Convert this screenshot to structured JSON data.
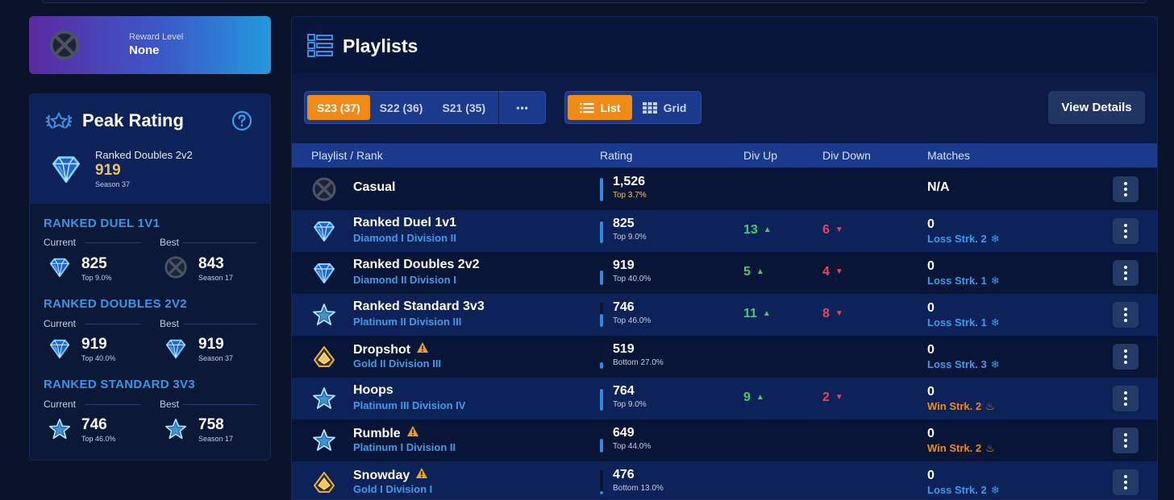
{
  "reward": {
    "label": "Reward Level",
    "value": "None"
  },
  "peak": {
    "title": "Peak Rating",
    "playlist": "Ranked Doubles 2v2",
    "rating": "919",
    "season": "Season 37",
    "sections": [
      {
        "title": "RANKED DUEL 1V1",
        "current_label": "Current",
        "best_label": "Best",
        "current": {
          "value": "825",
          "sub": "Top 9.0%",
          "icon": "diamond-rank-icon"
        },
        "best": {
          "value": "843",
          "sub": "Season 17",
          "icon": "unranked-icon"
        }
      },
      {
        "title": "RANKED DOUBLES 2V2",
        "current_label": "Current",
        "best_label": "Best",
        "current": {
          "value": "919",
          "sub": "Top 40.0%",
          "icon": "diamond-rank-icon"
        },
        "best": {
          "value": "919",
          "sub": "Season 37",
          "icon": "diamond-rank-icon"
        }
      },
      {
        "title": "RANKED STANDARD 3V3",
        "current_label": "Current",
        "best_label": "Best",
        "current": {
          "value": "746",
          "sub": "Top 46.0%",
          "icon": "platinum-rank-icon"
        },
        "best": {
          "value": "758",
          "sub": "Season 17",
          "icon": "platinum-rank-icon"
        }
      }
    ]
  },
  "main": {
    "title": "Playlists",
    "seasons": [
      "S23 (37)",
      "S22 (36)",
      "S21 (35)"
    ],
    "more_label": "•••",
    "view_list": "List",
    "view_grid": "Grid",
    "view_details": "View Details",
    "columns": [
      "Playlist / Rank",
      "Rating",
      "Div Up",
      "Div Down",
      "Matches"
    ]
  },
  "rows": [
    {
      "name": "Casual",
      "rank": "",
      "rating": "1,526",
      "rating_sub": "Top 3.7%",
      "rating_level": 0.963,
      "div_up": "",
      "div_down": "",
      "matches": "N/A",
      "streak": "",
      "icon": "unranked-icon",
      "warn": false
    },
    {
      "name": "Ranked Duel 1v1",
      "rank": "Diamond I Division II",
      "rating": "825",
      "rating_sub": "Top 9.0%",
      "rating_level": 0.91,
      "div_up": "13",
      "div_down": "6",
      "matches": "0",
      "streak": "Loss Strk. 2",
      "streak_type": "loss",
      "icon": "diamond-rank-icon",
      "warn": false
    },
    {
      "name": "Ranked Doubles 2v2",
      "rank": "Diamond II Division I",
      "rating": "919",
      "rating_sub": "Top 40.0%",
      "rating_level": 0.6,
      "div_up": "5",
      "div_down": "4",
      "matches": "0",
      "streak": "Loss Strk. 1",
      "streak_type": "loss",
      "icon": "diamond-rank-icon",
      "warn": false
    },
    {
      "name": "Ranked Standard 3v3",
      "rank": "Platinum II Division III",
      "rating": "746",
      "rating_sub": "Top 46.0%",
      "rating_level": 0.54,
      "div_up": "11",
      "div_down": "8",
      "matches": "0",
      "streak": "Loss Strk. 1",
      "streak_type": "loss",
      "icon": "platinum-rank-icon",
      "warn": false
    },
    {
      "name": "Dropshot",
      "rank": "Gold II Division III",
      "rating": "519",
      "rating_sub": "Bottom 27.0%",
      "rating_level": 0.27,
      "div_up": "",
      "div_down": "",
      "matches": "0",
      "streak": "Loss Strk. 3",
      "streak_type": "loss",
      "icon": "gold-rank-icon",
      "warn": true
    },
    {
      "name": "Hoops",
      "rank": "Platinum III Division IV",
      "rating": "764",
      "rating_sub": "Top 9.0%",
      "rating_level": 0.91,
      "div_up": "9",
      "div_down": "2",
      "matches": "0",
      "streak": "Win Strk. 2",
      "streak_type": "win",
      "icon": "platinum-rank-icon",
      "warn": false
    },
    {
      "name": "Rumble",
      "rank": "Platinum I Division II",
      "rating": "649",
      "rating_sub": "Top 44.0%",
      "rating_level": 0.56,
      "div_up": "",
      "div_down": "",
      "matches": "0",
      "streak": "Win Strk. 2",
      "streak_type": "win",
      "icon": "platinum-rank-icon",
      "warn": true
    },
    {
      "name": "Snowday",
      "rank": "Gold I Division I",
      "rating": "476",
      "rating_sub": "Bottom 13.0%",
      "rating_level": 0.13,
      "div_up": "",
      "div_down": "",
      "matches": "0",
      "streak": "Loss Strk. 2",
      "streak_type": "loss",
      "icon": "gold-rank-icon",
      "warn": true
    }
  ]
}
